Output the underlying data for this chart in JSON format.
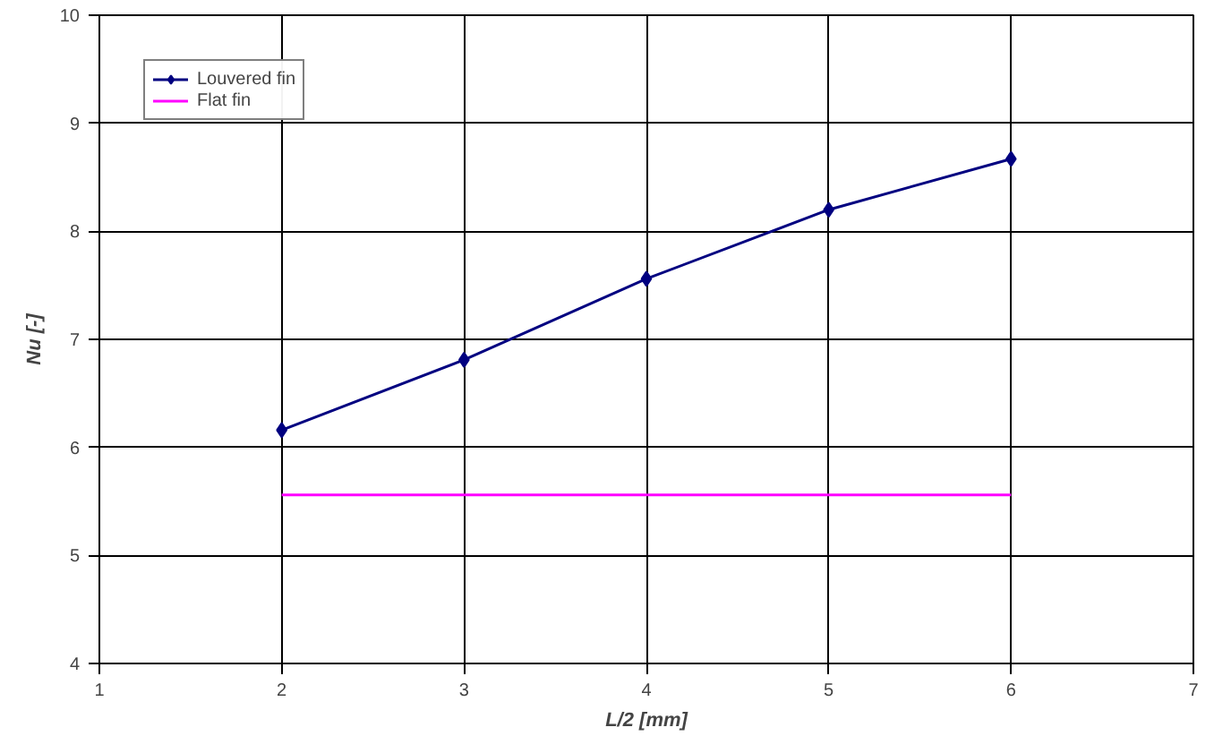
{
  "chart_data": {
    "type": "line",
    "xlabel": "L/2 [mm]",
    "ylabel": "Nu [-]",
    "x": [
      2,
      3,
      4,
      5,
      6
    ],
    "series": [
      {
        "name": "Louvered fin",
        "color": "#000080",
        "values": [
          6.16,
          6.81,
          7.56,
          8.2,
          8.67
        ],
        "marker": "diamond"
      },
      {
        "name": "Flat fin",
        "color": "#ff00ff",
        "values": [
          5.56,
          5.56,
          5.56,
          5.56,
          5.56
        ],
        "marker": "none"
      }
    ],
    "xlim": [
      1,
      7
    ],
    "xticks": [
      1,
      2,
      3,
      4,
      5,
      6,
      7
    ],
    "ylim": [
      4,
      10
    ],
    "yticks": [
      4,
      5,
      6,
      7,
      8,
      9,
      10
    ],
    "grid": true,
    "legend": "top left",
    "line_style": "solid"
  }
}
